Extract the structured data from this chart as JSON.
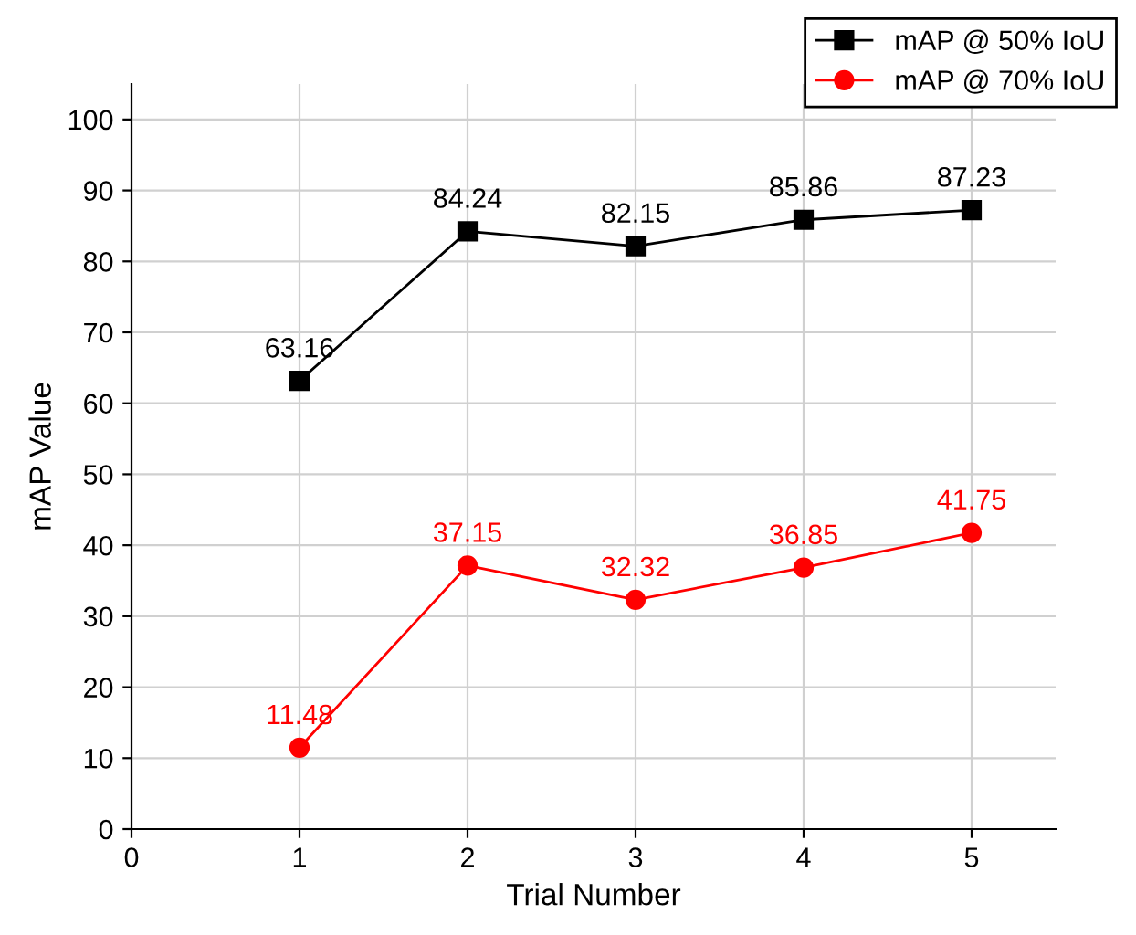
{
  "chart_data": {
    "type": "line",
    "xlabel": "Trial Number",
    "ylabel": "mAP Value",
    "x": [
      1,
      2,
      3,
      4,
      5
    ],
    "series": [
      {
        "name": "mAP @ 50% IoU",
        "color": "#000000",
        "marker": "square",
        "values": [
          63.16,
          84.24,
          82.15,
          85.86,
          87.23
        ]
      },
      {
        "name": "mAP @ 70% IoU",
        "color": "#ff0000",
        "marker": "circle",
        "values": [
          11.48,
          37.15,
          32.32,
          36.85,
          41.75
        ]
      }
    ],
    "xlim": [
      0,
      5.5
    ],
    "xticks": [
      0,
      1,
      2,
      3,
      4,
      5
    ],
    "ylim": [
      0,
      105
    ],
    "yticks": [
      0,
      10,
      20,
      30,
      40,
      50,
      60,
      70,
      80,
      90,
      100
    ],
    "grid": true,
    "legend": "top right",
    "data_labels": true,
    "line_style": "solid"
  }
}
